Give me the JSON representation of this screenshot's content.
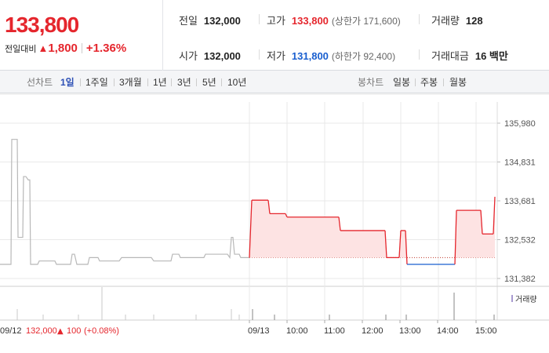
{
  "quote": {
    "price": "133,800",
    "change_label": "전일대비",
    "change_value": "1,800",
    "change_pct": "+1.36%"
  },
  "stats": {
    "prev_close": {
      "label": "전일",
      "value": "132,000"
    },
    "open": {
      "label": "시가",
      "value": "132,000"
    },
    "high": {
      "label": "고가",
      "value": "133,800",
      "sub": "(상한가 171,600)"
    },
    "low": {
      "label": "저가",
      "value": "131,800",
      "sub": "(하한가 92,400)"
    },
    "volume": {
      "label": "거래량",
      "value": "128"
    },
    "turnover": {
      "label": "거래대금",
      "value": "16 백만"
    }
  },
  "line_tabs": {
    "heading": "선차트",
    "items": [
      "1일",
      "1주일",
      "3개월",
      "1년",
      "3년",
      "5년",
      "10년"
    ],
    "active": 0
  },
  "candle_tabs": {
    "heading": "봉차트",
    "items": [
      "일봉",
      "주봉",
      "월봉"
    ]
  },
  "colors": {
    "up": "#e5262d",
    "down": "#1a5fcf",
    "prev_day_line": "#b8b8b8",
    "fill": "#fde3e3",
    "volume_prev": "#c8c8c8",
    "volume_today": "#9b9b9b",
    "grid": "#e9e9e9"
  },
  "chart_data": {
    "type": "line",
    "y_axis": {
      "ticks": [
        "135,980",
        "134,831",
        "133,681",
        "132,532",
        "131,382"
      ],
      "range": [
        131382,
        135980
      ]
    },
    "x_axis": {
      "ticks": [
        "09/12",
        "09/13",
        "10:00",
        "11:00",
        "12:00",
        "13:00",
        "14:00",
        "15:00"
      ]
    },
    "baseline": 132000,
    "prev_day_series": [
      [
        0,
        131800
      ],
      [
        14,
        131800
      ],
      [
        15,
        135500
      ],
      [
        22,
        135500
      ],
      [
        23,
        132600
      ],
      [
        29,
        132600
      ],
      [
        30,
        134400
      ],
      [
        33,
        134400
      ],
      [
        36,
        134300
      ],
      [
        38,
        134300
      ],
      [
        39,
        131800
      ],
      [
        48,
        131800
      ],
      [
        50,
        131900
      ],
      [
        70,
        131900
      ],
      [
        72,
        131800
      ],
      [
        90,
        131800
      ],
      [
        92,
        132100
      ],
      [
        95,
        132100
      ],
      [
        98,
        131800
      ],
      [
        112,
        131800
      ],
      [
        114,
        132000
      ],
      [
        125,
        132000
      ],
      [
        127,
        131900
      ],
      [
        152,
        131900
      ],
      [
        155,
        132000
      ],
      [
        193,
        132000
      ],
      [
        196,
        131900
      ],
      [
        218,
        131900
      ],
      [
        220,
        132100
      ],
      [
        228,
        132100
      ],
      [
        230,
        132000
      ],
      [
        260,
        132000
      ],
      [
        262,
        132100
      ],
      [
        290,
        132100
      ],
      [
        293,
        132000
      ],
      [
        295,
        132600
      ],
      [
        297,
        132600
      ],
      [
        299,
        132100
      ],
      [
        305,
        132100
      ],
      [
        307,
        132000
      ],
      [
        318,
        132000
      ]
    ],
    "today_series": [
      [
        318,
        132000
      ],
      [
        321,
        133700
      ],
      [
        342,
        133700
      ],
      [
        344,
        133300
      ],
      [
        364,
        133300
      ],
      [
        366,
        133200
      ],
      [
        432,
        133200
      ],
      [
        434,
        132800
      ],
      [
        491,
        132800
      ],
      [
        493,
        132000
      ],
      [
        509,
        132000
      ],
      [
        511,
        132800
      ],
      [
        517,
        132800
      ],
      [
        519,
        131800
      ],
      [
        580,
        131800
      ],
      [
        582,
        133400
      ],
      [
        613,
        133400
      ],
      [
        615,
        132700
      ],
      [
        629,
        132700
      ],
      [
        631,
        133800
      ]
    ],
    "prev_day_volume": [
      [
        22,
        2
      ],
      [
        55,
        1
      ],
      [
        100,
        1
      ],
      [
        130,
        6
      ],
      [
        160,
        1
      ],
      [
        196,
        1
      ],
      [
        250,
        1
      ],
      [
        295,
        2
      ],
      [
        305,
        1
      ]
    ],
    "volume": [
      [
        322,
        2
      ],
      [
        350,
        1
      ],
      [
        420,
        1
      ],
      [
        492,
        1
      ],
      [
        518,
        1
      ],
      [
        579,
        5
      ],
      [
        630,
        1
      ]
    ],
    "legend": "거래량",
    "last_close": {
      "date": "09/12",
      "price": "132,000",
      "change": "100",
      "pct": "(+0.08%)"
    }
  }
}
